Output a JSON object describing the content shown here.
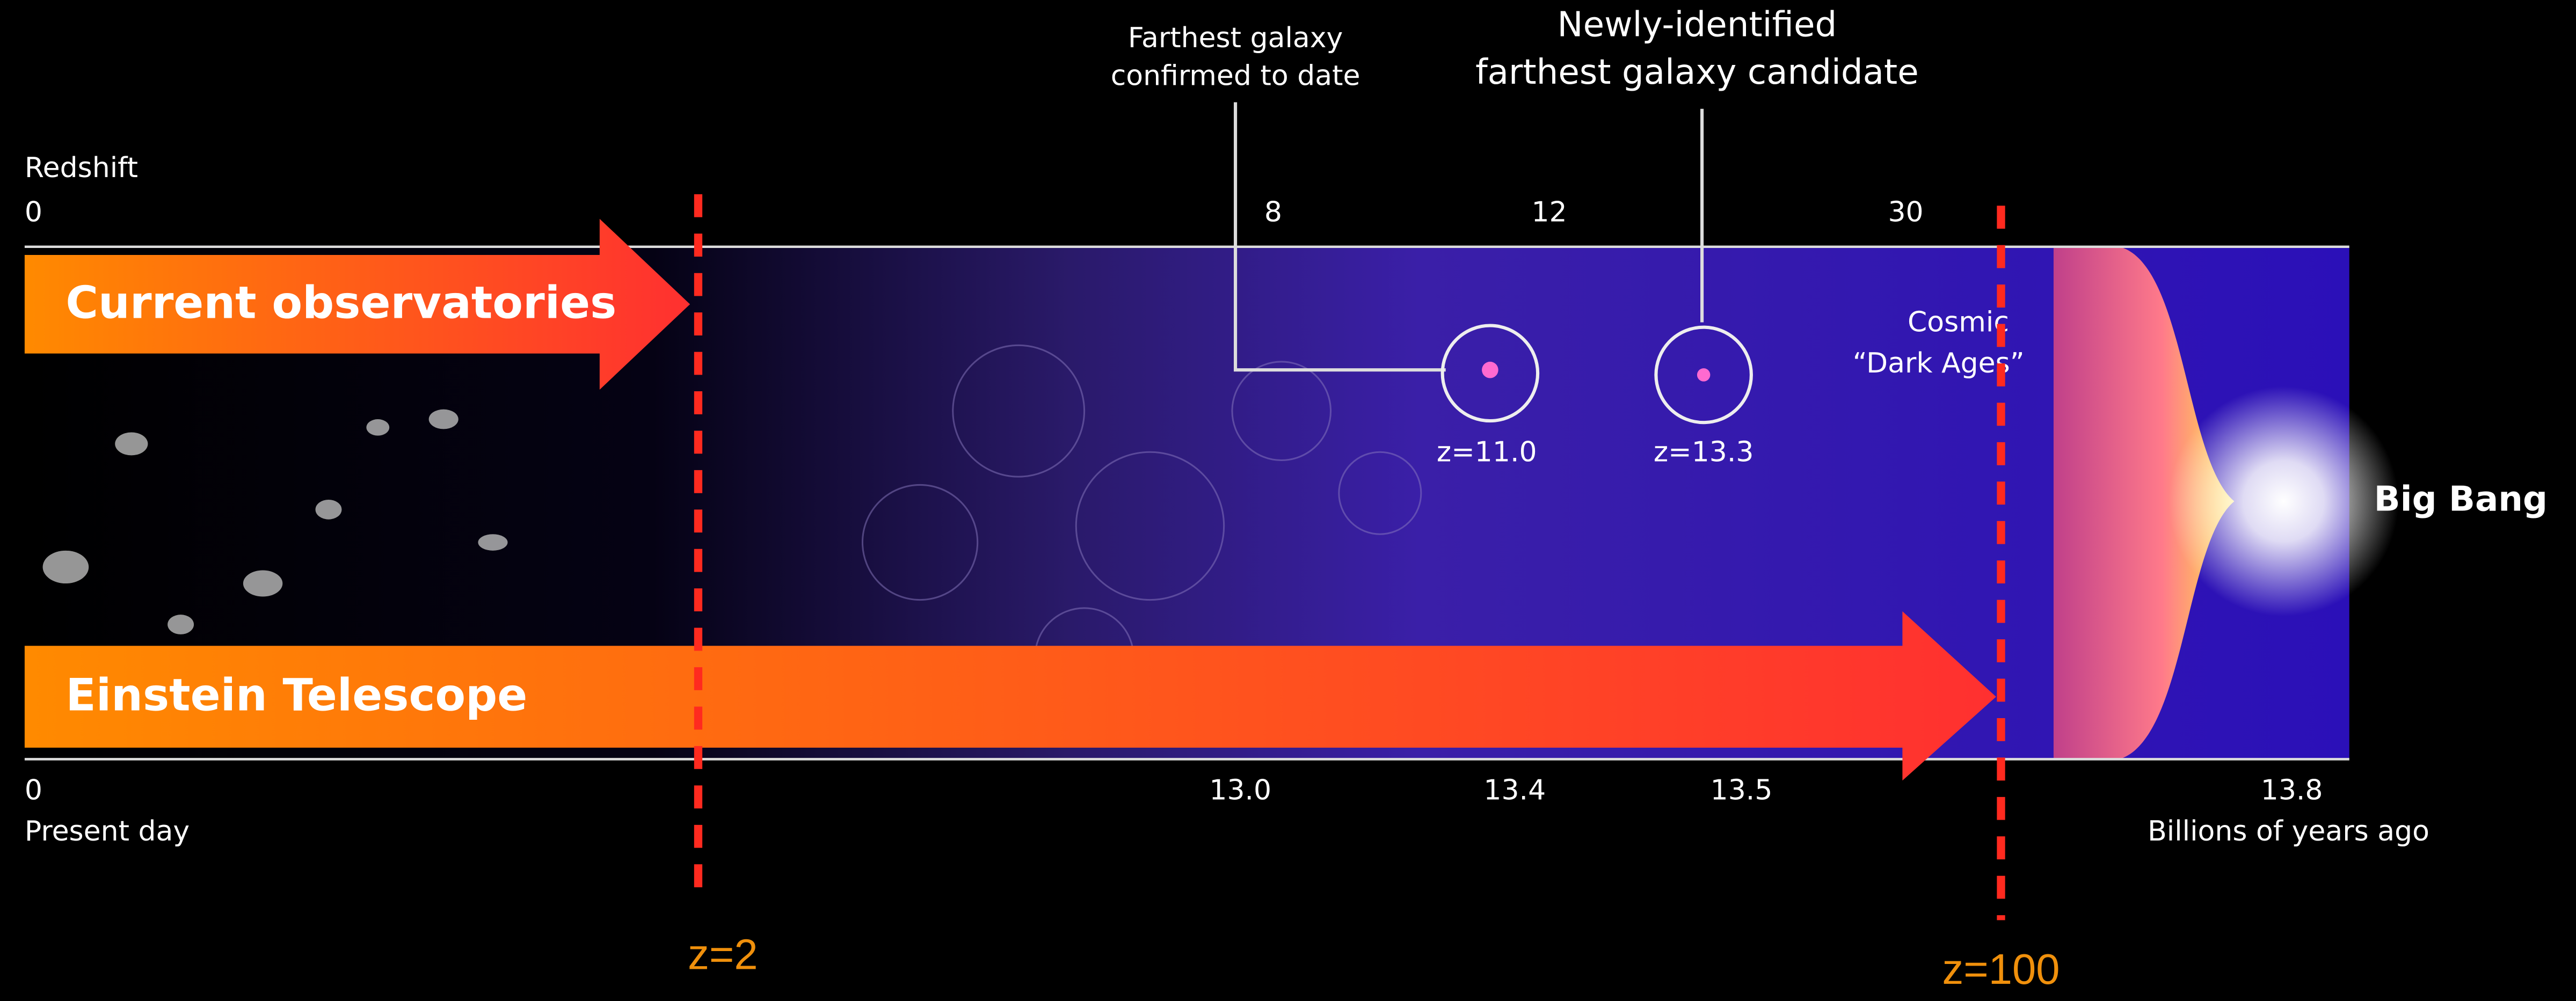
{
  "callouts": [
    {
      "lines": [
        "Farthest galaxy",
        "confirmed to date"
      ]
    },
    {
      "lines": [
        "Newly-identified",
        "farthest galaxy candidate"
      ]
    }
  ],
  "redshift_axis": {
    "title": "Redshift",
    "ticks": [
      "0",
      "8",
      "12",
      "30"
    ]
  },
  "time_axis": {
    "ticks": [
      "0",
      "13.0",
      "13.4",
      "13.5",
      "13.8"
    ],
    "start_label": "Present day",
    "end_label": "Billions of years ago"
  },
  "galaxies": [
    "z=11.0",
    "z=13.3"
  ],
  "dark_ages": [
    "Cosmic",
    "“Dark Ages”"
  ],
  "big_bang": "Big Bang",
  "arrows": [
    "Current observatories",
    "Einstein Telescope"
  ],
  "markers": [
    "z=2",
    "z=100"
  ]
}
